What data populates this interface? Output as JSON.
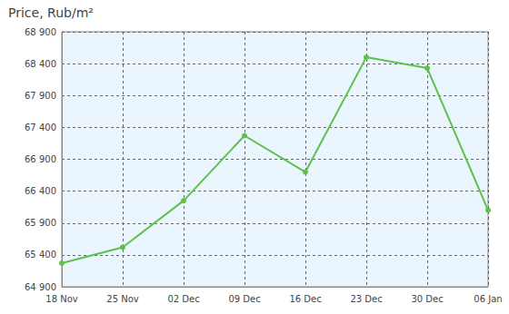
{
  "chart_data": {
    "type": "line",
    "title": "Price, Rub/m²",
    "categories": [
      "18 Nov",
      "25 Nov",
      "02 Dec",
      "09 Dec",
      "16 Dec",
      "23 Dec",
      "30 Dec",
      "06 Jan"
    ],
    "values": [
      65270,
      65520,
      66250,
      67270,
      66700,
      68500,
      68330,
      66100
    ],
    "color": "#5dc24a",
    "ylim": [
      64900,
      68900
    ],
    "yticks": [
      {
        "value": 64900,
        "label": "64 900"
      },
      {
        "value": 65400,
        "label": "65 400"
      },
      {
        "value": 65900,
        "label": "65 900"
      },
      {
        "value": 66400,
        "label": "66 400"
      },
      {
        "value": 66900,
        "label": "66 900"
      },
      {
        "value": 67400,
        "label": "67 400"
      },
      {
        "value": 67900,
        "label": "67 900"
      },
      {
        "value": 68400,
        "label": "68 400"
      },
      {
        "value": 68900,
        "label": "68 900"
      }
    ],
    "grid": true,
    "marker": "circle"
  }
}
